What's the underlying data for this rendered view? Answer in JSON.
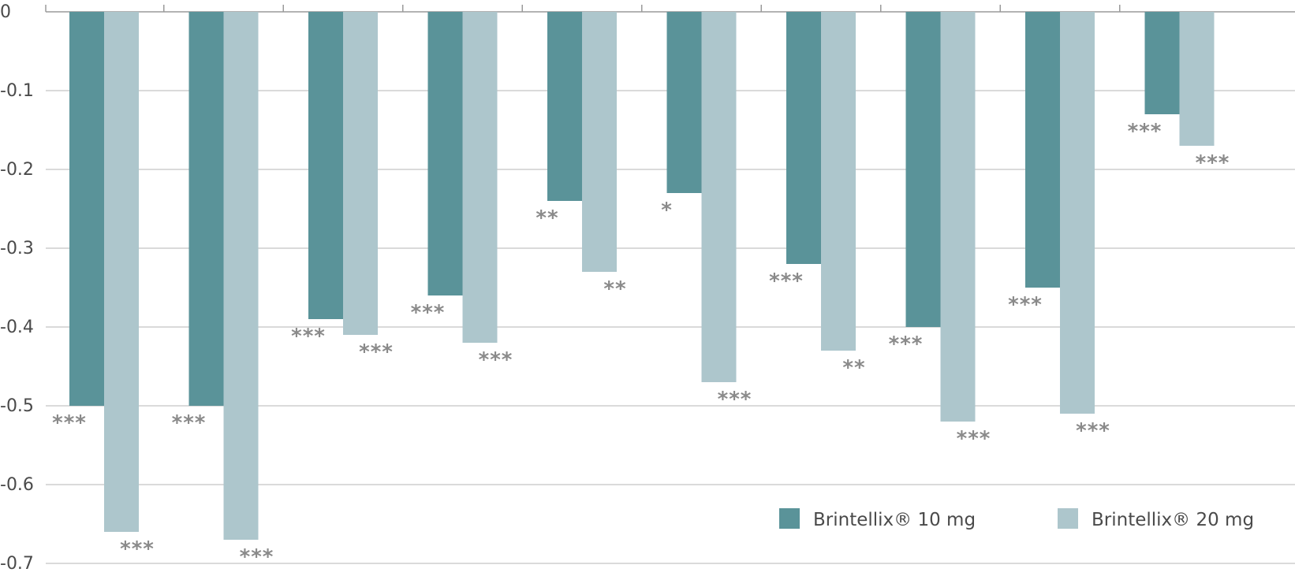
{
  "chart_data": {
    "type": "bar",
    "title": "",
    "xlabel": "",
    "ylabel": "",
    "ylim": [
      -0.7,
      0
    ],
    "yticks": [
      0,
      -0.1,
      -0.2,
      -0.3,
      -0.4,
      -0.5,
      -0.6,
      -0.7
    ],
    "ytick_labels": [
      "0",
      "-0.1",
      "-0.2",
      "-0.3",
      "-0.4",
      "-0.5",
      "-0.6",
      "-0.7"
    ],
    "category_count": 10,
    "grid": true,
    "legend_position": "bottom-right",
    "series": [
      {
        "name": "Brintellix® 10 mg",
        "color": "#5a9399",
        "values": [
          -0.5,
          -0.5,
          -0.39,
          -0.36,
          -0.24,
          -0.23,
          -0.32,
          -0.4,
          -0.35,
          -0.13
        ],
        "significance": [
          "***",
          "***",
          "***",
          "***",
          "**",
          "*",
          "***",
          "***",
          "***",
          "***"
        ]
      },
      {
        "name": "Brintellix® 20 mg",
        "color": "#adc6cc",
        "values": [
          -0.66,
          -0.67,
          -0.41,
          -0.42,
          -0.33,
          -0.47,
          -0.43,
          -0.52,
          -0.51,
          -0.17
        ],
        "significance": [
          "***",
          "***",
          "***",
          "***",
          "**",
          "***",
          "**",
          "***",
          "***",
          "***"
        ]
      }
    ]
  }
}
